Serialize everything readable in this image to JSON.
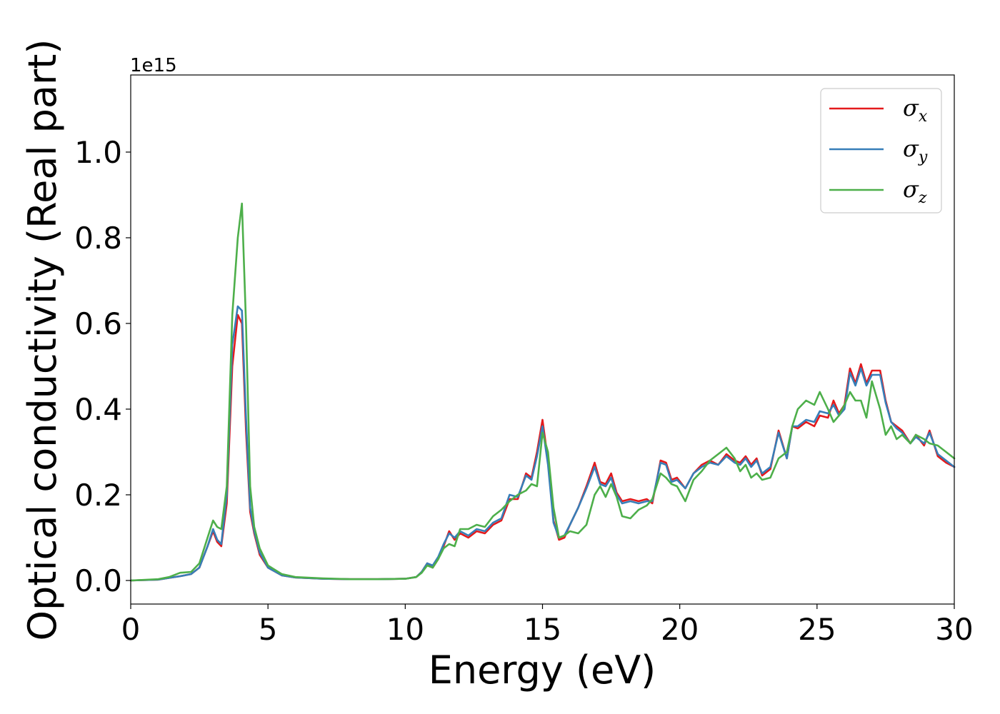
{
  "chart_data": {
    "type": "line",
    "title": "",
    "xlabel": "Energy (eV)",
    "ylabel": "Optical conductivity (Real part)",
    "y_offset_label": "1e15",
    "y_scale": 1000000000000000.0,
    "xlim": [
      0,
      30
    ],
    "ylim": [
      -0.055,
      1.18
    ],
    "x_ticks": [
      0,
      5,
      10,
      15,
      20,
      25,
      30
    ],
    "y_ticks": [
      0.0,
      0.2,
      0.4,
      0.6,
      0.8,
      1.0
    ],
    "y_tick_labels": [
      "0.0",
      "0.2",
      "0.4",
      "0.6",
      "0.8",
      "1.0"
    ],
    "grid": false,
    "legend_position": "top-right",
    "series": [
      {
        "name": "σx",
        "symbol": "σ",
        "subscript": "x",
        "color": "#e41a1c",
        "x": [
          0,
          1,
          1.4,
          1.8,
          2.2,
          2.5,
          2.8,
          3.0,
          3.15,
          3.3,
          3.5,
          3.7,
          3.9,
          4.05,
          4.2,
          4.35,
          4.5,
          4.7,
          5.0,
          5.5,
          6,
          7,
          8,
          9,
          10,
          10.4,
          10.6,
          10.8,
          11,
          11.2,
          11.4,
          11.6,
          11.8,
          12,
          12.3,
          12.6,
          12.9,
          13.2,
          13.5,
          13.8,
          14.1,
          14.4,
          14.6,
          14.8,
          15.0,
          15.2,
          15.4,
          15.6,
          15.8,
          16.0,
          16.3,
          16.6,
          16.9,
          17.1,
          17.3,
          17.5,
          17.7,
          17.9,
          18.2,
          18.5,
          18.8,
          19.0,
          19.3,
          19.5,
          19.7,
          19.9,
          20.2,
          20.5,
          20.8,
          21.1,
          21.4,
          21.7,
          22.0,
          22.2,
          22.4,
          22.6,
          22.8,
          23.0,
          23.3,
          23.6,
          23.9,
          24.1,
          24.3,
          24.6,
          24.9,
          25.1,
          25.4,
          25.6,
          25.8,
          26.0,
          26.2,
          26.4,
          26.6,
          26.8,
          27.0,
          27.3,
          27.5,
          27.7,
          27.9,
          28.1,
          28.4,
          28.6,
          28.9,
          29.1,
          29.4,
          29.7,
          30.0
        ],
        "y": [
          0,
          0.002,
          0.006,
          0.01,
          0.015,
          0.03,
          0.08,
          0.115,
          0.09,
          0.08,
          0.18,
          0.5,
          0.62,
          0.6,
          0.35,
          0.16,
          0.11,
          0.06,
          0.03,
          0.012,
          0.007,
          0.004,
          0.003,
          0.003,
          0.004,
          0.008,
          0.02,
          0.04,
          0.03,
          0.05,
          0.08,
          0.115,
          0.095,
          0.11,
          0.1,
          0.115,
          0.11,
          0.13,
          0.14,
          0.19,
          0.19,
          0.25,
          0.24,
          0.3,
          0.375,
          0.28,
          0.14,
          0.095,
          0.1,
          0.13,
          0.17,
          0.22,
          0.275,
          0.23,
          0.225,
          0.25,
          0.205,
          0.185,
          0.19,
          0.185,
          0.19,
          0.18,
          0.28,
          0.275,
          0.235,
          0.24,
          0.215,
          0.25,
          0.27,
          0.28,
          0.27,
          0.295,
          0.28,
          0.275,
          0.29,
          0.27,
          0.285,
          0.245,
          0.26,
          0.35,
          0.285,
          0.36,
          0.355,
          0.37,
          0.36,
          0.385,
          0.38,
          0.42,
          0.39,
          0.41,
          0.495,
          0.46,
          0.505,
          0.46,
          0.49,
          0.49,
          0.42,
          0.37,
          0.36,
          0.35,
          0.32,
          0.34,
          0.315,
          0.35,
          0.29,
          0.275,
          0.265
        ]
      },
      {
        "name": "σy",
        "symbol": "σ",
        "subscript": "y",
        "color": "#377eb8",
        "x": [
          0,
          1,
          1.4,
          1.8,
          2.2,
          2.5,
          2.8,
          3.0,
          3.15,
          3.3,
          3.5,
          3.7,
          3.9,
          4.05,
          4.2,
          4.35,
          4.5,
          4.7,
          5.0,
          5.5,
          6,
          7,
          8,
          9,
          10,
          10.4,
          10.6,
          10.8,
          11,
          11.2,
          11.4,
          11.6,
          11.8,
          12,
          12.3,
          12.6,
          12.9,
          13.2,
          13.5,
          13.8,
          14.1,
          14.4,
          14.6,
          14.8,
          15.0,
          15.2,
          15.4,
          15.6,
          15.8,
          16.0,
          16.3,
          16.6,
          16.9,
          17.1,
          17.3,
          17.5,
          17.7,
          17.9,
          18.2,
          18.5,
          18.8,
          19.0,
          19.3,
          19.5,
          19.7,
          19.9,
          20.2,
          20.5,
          20.8,
          21.1,
          21.4,
          21.7,
          22.0,
          22.2,
          22.4,
          22.6,
          22.8,
          23.0,
          23.3,
          23.6,
          23.9,
          24.1,
          24.3,
          24.6,
          24.9,
          25.1,
          25.4,
          25.6,
          25.8,
          26.0,
          26.2,
          26.4,
          26.6,
          26.8,
          27.0,
          27.3,
          27.5,
          27.7,
          27.9,
          28.1,
          28.4,
          28.6,
          28.9,
          29.1,
          29.4,
          29.7,
          30.0
        ],
        "y": [
          0,
          0.002,
          0.006,
          0.01,
          0.015,
          0.03,
          0.08,
          0.12,
          0.095,
          0.085,
          0.2,
          0.55,
          0.64,
          0.63,
          0.38,
          0.17,
          0.115,
          0.065,
          0.03,
          0.012,
          0.007,
          0.004,
          0.003,
          0.003,
          0.004,
          0.008,
          0.02,
          0.04,
          0.035,
          0.055,
          0.085,
          0.11,
          0.1,
          0.115,
          0.105,
          0.12,
          0.115,
          0.135,
          0.145,
          0.2,
          0.195,
          0.245,
          0.235,
          0.29,
          0.36,
          0.27,
          0.135,
          0.1,
          0.105,
          0.13,
          0.17,
          0.215,
          0.265,
          0.225,
          0.22,
          0.24,
          0.2,
          0.18,
          0.185,
          0.18,
          0.185,
          0.185,
          0.275,
          0.27,
          0.23,
          0.235,
          0.215,
          0.25,
          0.265,
          0.275,
          0.27,
          0.29,
          0.275,
          0.27,
          0.285,
          0.265,
          0.28,
          0.25,
          0.265,
          0.345,
          0.285,
          0.36,
          0.36,
          0.375,
          0.37,
          0.395,
          0.39,
          0.41,
          0.385,
          0.4,
          0.485,
          0.455,
          0.495,
          0.455,
          0.48,
          0.48,
          0.415,
          0.37,
          0.355,
          0.345,
          0.32,
          0.335,
          0.32,
          0.345,
          0.295,
          0.28,
          0.265
        ]
      },
      {
        "name": "σz",
        "symbol": "σ",
        "subscript": "z",
        "color": "#4daf4a",
        "x": [
          0,
          1,
          1.4,
          1.8,
          2.2,
          2.5,
          2.8,
          3.0,
          3.15,
          3.3,
          3.5,
          3.7,
          3.9,
          4.05,
          4.2,
          4.35,
          4.5,
          4.7,
          5.0,
          5.5,
          6,
          7,
          8,
          9,
          10,
          10.4,
          10.6,
          10.8,
          11,
          11.2,
          11.4,
          11.6,
          11.8,
          12,
          12.3,
          12.6,
          12.9,
          13.2,
          13.5,
          13.8,
          14.1,
          14.4,
          14.6,
          14.8,
          15.0,
          15.2,
          15.4,
          15.6,
          15.8,
          16.0,
          16.3,
          16.6,
          16.9,
          17.1,
          17.3,
          17.5,
          17.7,
          17.9,
          18.2,
          18.5,
          18.8,
          19.0,
          19.3,
          19.5,
          19.7,
          19.9,
          20.2,
          20.5,
          20.8,
          21.1,
          21.4,
          21.7,
          22.0,
          22.2,
          22.4,
          22.6,
          22.8,
          23.0,
          23.3,
          23.6,
          23.9,
          24.1,
          24.3,
          24.6,
          24.9,
          25.1,
          25.4,
          25.6,
          25.8,
          26.0,
          26.2,
          26.4,
          26.6,
          26.8,
          27.0,
          27.3,
          27.5,
          27.7,
          27.9,
          28.1,
          28.4,
          28.6,
          28.9,
          29.1,
          29.4,
          29.7,
          30.0
        ],
        "y": [
          0,
          0.003,
          0.008,
          0.018,
          0.02,
          0.04,
          0.1,
          0.14,
          0.125,
          0.12,
          0.22,
          0.62,
          0.8,
          0.88,
          0.6,
          0.22,
          0.125,
          0.075,
          0.035,
          0.015,
          0.008,
          0.005,
          0.003,
          0.003,
          0.004,
          0.008,
          0.018,
          0.035,
          0.03,
          0.05,
          0.075,
          0.085,
          0.08,
          0.12,
          0.12,
          0.13,
          0.125,
          0.15,
          0.165,
          0.185,
          0.2,
          0.21,
          0.225,
          0.22,
          0.345,
          0.3,
          0.17,
          0.1,
          0.105,
          0.115,
          0.11,
          0.13,
          0.2,
          0.22,
          0.195,
          0.225,
          0.195,
          0.15,
          0.145,
          0.165,
          0.175,
          0.19,
          0.25,
          0.24,
          0.225,
          0.22,
          0.185,
          0.235,
          0.255,
          0.28,
          0.295,
          0.31,
          0.285,
          0.255,
          0.27,
          0.24,
          0.25,
          0.235,
          0.24,
          0.285,
          0.3,
          0.36,
          0.4,
          0.42,
          0.41,
          0.44,
          0.4,
          0.37,
          0.385,
          0.41,
          0.44,
          0.42,
          0.42,
          0.38,
          0.465,
          0.4,
          0.34,
          0.36,
          0.33,
          0.34,
          0.32,
          0.34,
          0.33,
          0.32,
          0.315,
          0.3,
          0.285
        ]
      }
    ]
  }
}
